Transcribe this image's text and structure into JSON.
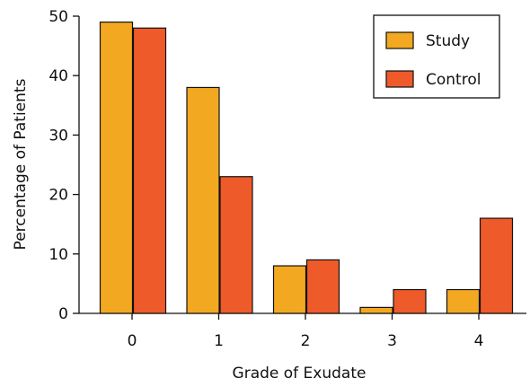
{
  "chart_data": {
    "type": "bar",
    "title": "",
    "xlabel": "Grade of Exudate",
    "ylabel": "Percentage of Patients",
    "categories": [
      "0",
      "1",
      "2",
      "3",
      "4"
    ],
    "series": [
      {
        "name": "Study",
        "values": [
          49,
          38,
          8,
          1,
          4
        ],
        "color": "#f2a821"
      },
      {
        "name": "Control",
        "values": [
          48,
          23,
          9,
          4,
          16
        ],
        "color": "#ee5a2a"
      }
    ],
    "ylim": [
      0,
      50
    ],
    "yticks": [
      "0",
      "10",
      "20",
      "30",
      "40",
      "50"
    ],
    "grid": false,
    "legend_position": "top-right"
  }
}
